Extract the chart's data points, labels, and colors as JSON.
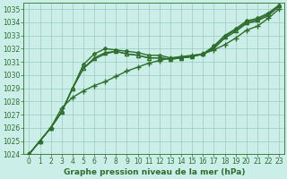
{
  "background_color": "#cceee8",
  "grid_color": "#99ccbb",
  "line_color": "#2d6e2d",
  "marker_color": "#2d6e2d",
  "xlabel": "Graphe pression niveau de la mer (hPa)",
  "ylim": [
    1024,
    1035.5
  ],
  "xlim": [
    -0.5,
    23.5
  ],
  "yticks": [
    1024,
    1025,
    1026,
    1027,
    1028,
    1029,
    1030,
    1031,
    1032,
    1033,
    1034,
    1035
  ],
  "xticks": [
    0,
    1,
    2,
    3,
    4,
    5,
    6,
    7,
    8,
    9,
    10,
    11,
    12,
    13,
    14,
    15,
    16,
    17,
    18,
    19,
    20,
    21,
    22,
    23
  ],
  "series": [
    [
      1024.0,
      1025.0,
      1026.0,
      1027.2,
      1029.0,
      1030.5,
      1031.2,
      1031.6,
      1031.8,
      1031.6,
      1031.5,
      1031.3,
      1031.3,
      1031.2,
      1031.3,
      1031.4,
      1031.6,
      1032.0,
      1032.8,
      1033.3,
      1033.9,
      1034.1,
      1034.5,
      1035.2
    ],
    [
      1024.0,
      1025.0,
      1026.0,
      1027.5,
      1028.3,
      1028.8,
      1029.2,
      1029.5,
      1029.9,
      1030.3,
      1030.6,
      1030.9,
      1031.1,
      1031.3,
      1031.4,
      1031.5,
      1031.6,
      1031.9,
      1032.3,
      1032.8,
      1033.4,
      1033.7,
      1034.3,
      1035.0
    ],
    [
      1024.0,
      1025.0,
      1026.0,
      1027.2,
      1029.0,
      1030.5,
      1031.3,
      1031.7,
      1031.8,
      1031.6,
      1031.5,
      1031.3,
      1031.3,
      1031.2,
      1031.3,
      1031.4,
      1031.6,
      1032.1,
      1032.9,
      1033.4,
      1034.0,
      1034.2,
      1034.6,
      1035.3
    ],
    [
      1024.0,
      1025.0,
      1026.0,
      1027.2,
      1029.0,
      1030.8,
      1031.6,
      1032.0,
      1031.9,
      1031.8,
      1031.7,
      1031.5,
      1031.5,
      1031.3,
      1031.3,
      1031.4,
      1031.6,
      1032.2,
      1033.0,
      1033.5,
      1034.1,
      1034.3,
      1034.7,
      1035.3
    ]
  ],
  "markers": [
    null,
    "+",
    "^",
    "D"
  ],
  "marker_sizes": [
    0,
    4,
    3,
    2
  ],
  "linewidths": [
    1.0,
    1.0,
    1.0,
    1.0
  ],
  "xlabel_fontsize": 6.5,
  "tick_fontsize": 5.5
}
